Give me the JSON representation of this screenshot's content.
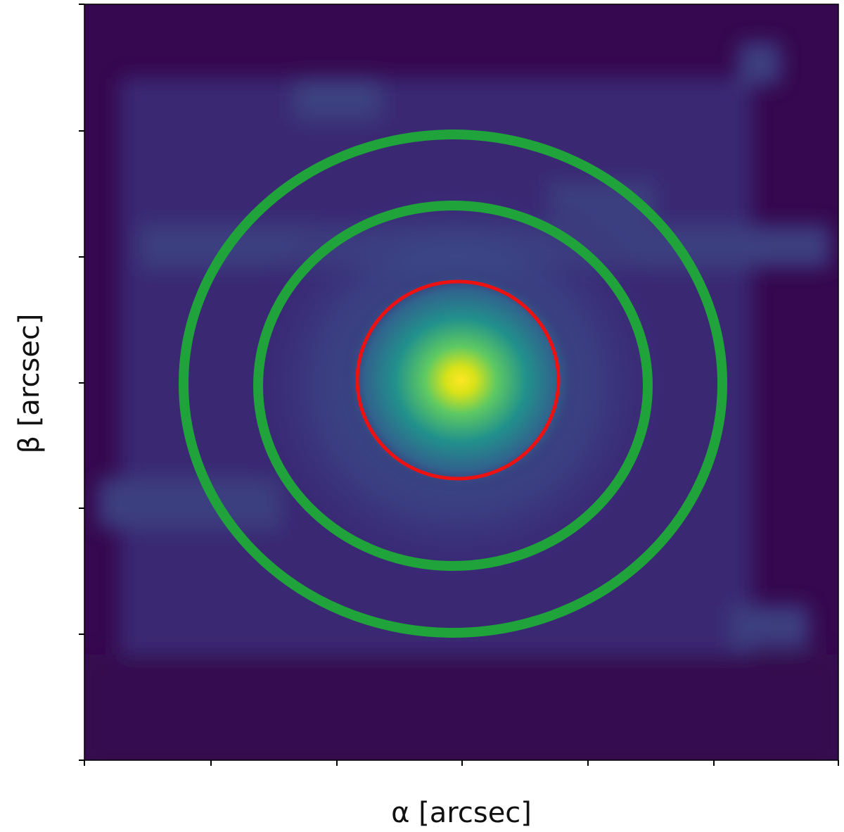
{
  "chart_data": {
    "type": "image",
    "xlabel": "α [arcsec]",
    "ylabel": "β [arcsec]"
  }
}
